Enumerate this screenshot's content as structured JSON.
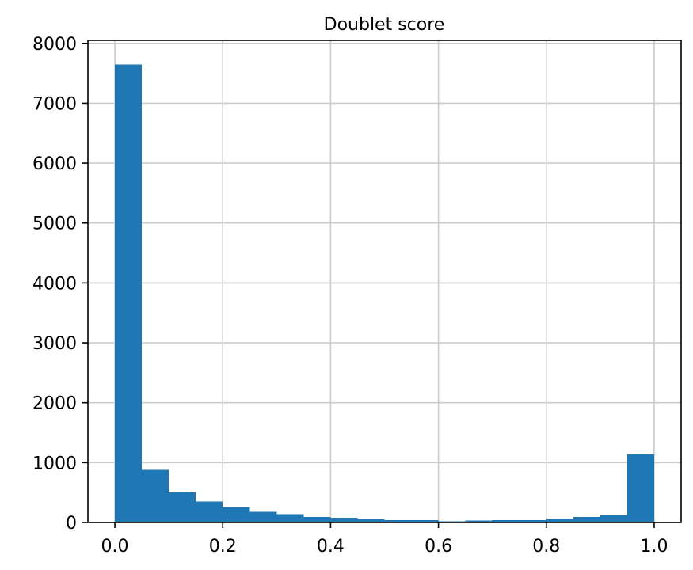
{
  "chart_data": {
    "type": "bar",
    "title": "Doublet score",
    "xlabel": "",
    "ylabel": "",
    "bin_edges": [
      0.0,
      0.05,
      0.1,
      0.15,
      0.2,
      0.25,
      0.3,
      0.35,
      0.4,
      0.45,
      0.5,
      0.55,
      0.6,
      0.65,
      0.7,
      0.75,
      0.8,
      0.85,
      0.9,
      0.95,
      1.0
    ],
    "values": [
      7650,
      880,
      500,
      350,
      260,
      180,
      140,
      90,
      80,
      50,
      40,
      40,
      20,
      30,
      40,
      40,
      60,
      90,
      120,
      1140
    ],
    "xlim": [
      -0.05,
      1.05
    ],
    "ylim": [
      0,
      8050
    ],
    "xticks": [
      0.0,
      0.2,
      0.4,
      0.6,
      0.8,
      1.0
    ],
    "xtick_labels": [
      "0.0",
      "0.2",
      "0.4",
      "0.6",
      "0.8",
      "1.0"
    ],
    "yticks": [
      0,
      1000,
      2000,
      3000,
      4000,
      5000,
      6000,
      7000,
      8000
    ],
    "ytick_labels": [
      "0",
      "1000",
      "2000",
      "3000",
      "4000",
      "5000",
      "6000",
      "7000",
      "8000"
    ],
    "grid": true,
    "bar_color": "#1f77b4",
    "grid_color": "#cccccc"
  }
}
